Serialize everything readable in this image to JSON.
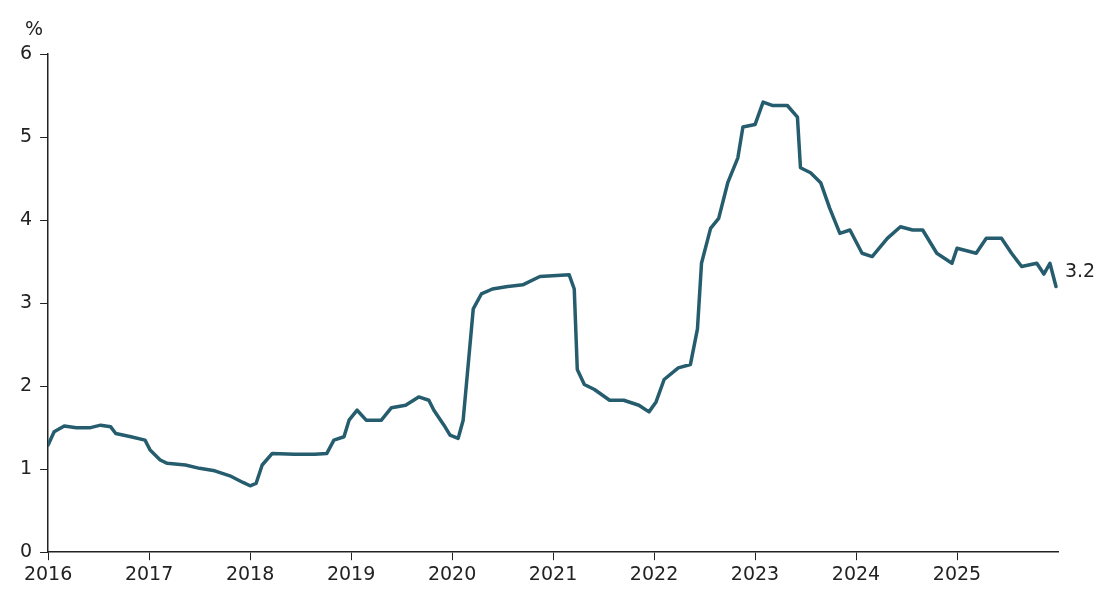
{
  "chart_data": {
    "type": "line",
    "ylabel": "%",
    "xlim": [
      2016,
      2026
    ],
    "xticks": [
      2016,
      2017,
      2018,
      2019,
      2020,
      2021,
      2022,
      2023,
      2024,
      2025
    ],
    "ylim": [
      0,
      6
    ],
    "yticks": [
      0,
      1,
      2,
      3,
      4,
      5,
      6
    ],
    "grid": false,
    "legend": false,
    "marker": "none",
    "line_style": "solid",
    "x": [
      2016.0,
      2016.06,
      2016.16,
      2016.28,
      2016.42,
      2016.52,
      2016.62,
      2016.67,
      2016.82,
      2016.96,
      2017.01,
      2017.11,
      2017.18,
      2017.36,
      2017.5,
      2017.65,
      2017.8,
      2017.93,
      2018.0,
      2018.06,
      2018.12,
      2018.22,
      2018.44,
      2018.64,
      2018.76,
      2018.83,
      2018.93,
      2018.98,
      2019.06,
      2019.15,
      2019.3,
      2019.4,
      2019.54,
      2019.67,
      2019.77,
      2019.82,
      2019.92,
      2019.98,
      2020.06,
      2020.11,
      2020.21,
      2020.29,
      2020.4,
      2020.55,
      2020.7,
      2020.87,
      2021.16,
      2021.21,
      2021.24,
      2021.31,
      2021.41,
      2021.56,
      2021.7,
      2021.85,
      2021.95,
      2022.02,
      2022.1,
      2022.24,
      2022.36,
      2022.43,
      2022.47,
      2022.56,
      2022.64,
      2022.73,
      2022.83,
      2022.88,
      2023.0,
      2023.08,
      2023.17,
      2023.32,
      2023.42,
      2023.45,
      2023.55,
      2023.65,
      2023.74,
      2023.84,
      2023.94,
      2024.06,
      2024.16,
      2024.31,
      2024.44,
      2024.56,
      2024.66,
      2024.8,
      2024.95,
      2025.0,
      2025.19,
      2025.29,
      2025.44,
      2025.54,
      2025.64,
      2025.79,
      2025.86,
      2025.92,
      2025.98
    ],
    "series": [
      {
        "color": "#265d6e",
        "values": [
          1.29,
          1.45,
          1.52,
          1.5,
          1.5,
          1.53,
          1.51,
          1.43,
          1.39,
          1.35,
          1.23,
          1.11,
          1.07,
          1.05,
          1.01,
          0.98,
          0.92,
          0.84,
          0.8,
          0.83,
          1.05,
          1.19,
          1.18,
          1.18,
          1.19,
          1.35,
          1.39,
          1.59,
          1.71,
          1.59,
          1.59,
          1.74,
          1.77,
          1.87,
          1.83,
          1.71,
          1.53,
          1.41,
          1.37,
          1.59,
          2.93,
          3.11,
          3.17,
          3.2,
          3.22,
          3.32,
          3.34,
          3.17,
          2.2,
          2.02,
          1.96,
          1.83,
          1.83,
          1.77,
          1.69,
          1.81,
          2.08,
          2.22,
          2.26,
          2.69,
          3.48,
          3.9,
          4.02,
          4.45,
          4.75,
          5.12,
          5.15,
          5.42,
          5.38,
          5.38,
          5.24,
          4.63,
          4.57,
          4.45,
          4.14,
          3.84,
          3.88,
          3.6,
          3.56,
          3.78,
          3.92,
          3.88,
          3.88,
          3.6,
          3.48,
          3.66,
          3.6,
          3.78,
          3.78,
          3.6,
          3.44,
          3.48,
          3.35,
          3.48,
          3.2
        ]
      }
    ],
    "annotations": [
      {
        "text": "3.2",
        "x": 2025.98,
        "y": 3.2
      }
    ]
  }
}
